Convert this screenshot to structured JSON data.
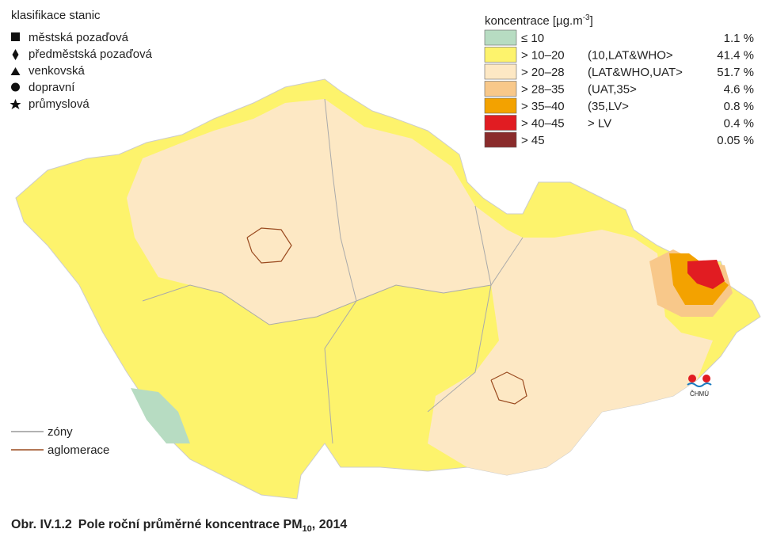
{
  "station_legend": {
    "title": "klasifikace stanic",
    "items": [
      "městská pozaďová",
      "předměstská pozaďová",
      "venkovská",
      "dopravní",
      "průmyslová"
    ]
  },
  "concentration_legend": {
    "title": "koncentrace [µg.m",
    "title_sup": "-3",
    "title_end": "]",
    "items": [
      {
        "range": "≤ 10",
        "share": "1.1 %",
        "color": "#b7dcc2"
      },
      {
        "range": "> 10–20",
        "interval": "(10,LAT&WHO>",
        "share": "41.4 %",
        "color": "#fdf36c"
      },
      {
        "range": "> 20–28",
        "interval": "(LAT&WHO,UAT>",
        "share": "51.7 %",
        "color": "#fde8c4"
      },
      {
        "range": "> 28–35",
        "interval": "(UAT,35>",
        "share": "4.6 %",
        "color": "#f8c88a"
      },
      {
        "range": "> 35–40",
        "interval": "(35,LV>",
        "share": "0.8 %",
        "color": "#f3a200"
      },
      {
        "range": "> 40–45",
        "interval": "> LV",
        "share": "0.4 %",
        "color": "#e11c22"
      },
      {
        "range": "> 45",
        "share": "0.05 %",
        "color": "#8a2b2b"
      }
    ]
  },
  "line_legend": [
    "zóny",
    "aglomerace"
  ],
  "logo": "ČHMÚ",
  "caption": {
    "number": "Obr. IV.1.2",
    "title": "Pole roční průměrné koncentrace PM",
    "subscript": "10",
    "suffix": ", 2014"
  }
}
